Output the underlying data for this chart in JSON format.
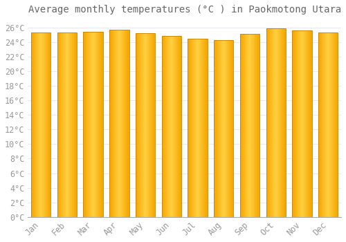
{
  "title": "Average monthly temperatures (°C ) in Paokmotong Utara",
  "months": [
    "Jan",
    "Feb",
    "Mar",
    "Apr",
    "May",
    "Jun",
    "Jul",
    "Aug",
    "Sep",
    "Oct",
    "Nov",
    "Dec"
  ],
  "values": [
    25.3,
    25.3,
    25.4,
    25.7,
    25.2,
    24.8,
    24.4,
    24.3,
    25.1,
    25.9,
    25.6,
    25.3
  ],
  "bar_color_left": "#F5A500",
  "bar_color_center": "#FFD040",
  "bar_color_right": "#F5A500",
  "background_color": "#FFFFFF",
  "grid_color": "#E8E8F0",
  "text_color": "#999999",
  "ylim": [
    0,
    27
  ],
  "yticks": [
    0,
    2,
    4,
    6,
    8,
    10,
    12,
    14,
    16,
    18,
    20,
    22,
    24,
    26
  ],
  "title_fontsize": 10,
  "tick_fontsize": 8.5
}
